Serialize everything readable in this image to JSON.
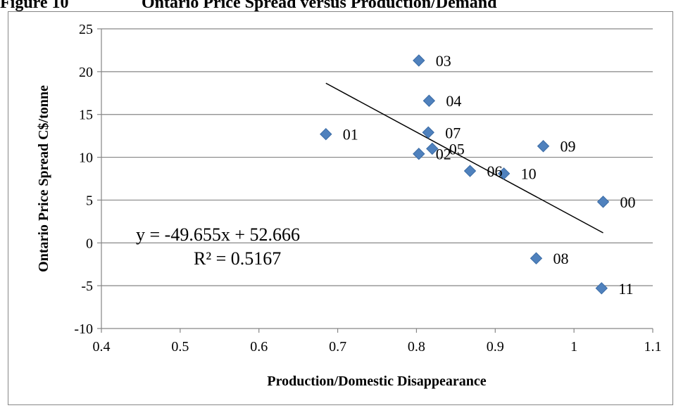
{
  "figure": {
    "label": "Figure 10",
    "caption": "Ontario Price Spread versus Production/Demand"
  },
  "chart_data": {
    "type": "scatter",
    "xlabel": "Production/Domestic Disappearance",
    "ylabel": "Ontario Price Spread C$/tonne",
    "xlim": [
      0.4,
      1.1
    ],
    "ylim": [
      -10,
      25
    ],
    "xticks": [
      "0.4",
      "0.5",
      "0.6",
      "0.7",
      "0.8",
      "0.9",
      "1",
      "1.1"
    ],
    "yticks": [
      "25",
      "20",
      "15",
      "10",
      "5",
      "0",
      "-5",
      "-10"
    ],
    "xtick_values": [
      0.4,
      0.5,
      0.6,
      0.7,
      0.8,
      0.9,
      1.0,
      1.1
    ],
    "ytick_values": [
      25,
      20,
      15,
      10,
      5,
      0,
      -5,
      -10
    ],
    "grid": "horizontal",
    "marker_color": "#4F81BD",
    "marker_stroke": "#3A6BA5",
    "points": [
      {
        "label": "00",
        "x": 1.037,
        "y": 4.8
      },
      {
        "label": "01",
        "x": 0.685,
        "y": 12.7
      },
      {
        "label": "02",
        "x": 0.803,
        "y": 10.4
      },
      {
        "label": "03",
        "x": 0.803,
        "y": 21.3
      },
      {
        "label": "04",
        "x": 0.816,
        "y": 16.6
      },
      {
        "label": "05",
        "x": 0.82,
        "y": 11.0
      },
      {
        "label": "06",
        "x": 0.868,
        "y": 8.4
      },
      {
        "label": "07",
        "x": 0.815,
        "y": 12.9
      },
      {
        "label": "08",
        "x": 0.952,
        "y": -1.8
      },
      {
        "label": "09",
        "x": 0.961,
        "y": 11.3
      },
      {
        "label": "10",
        "x": 0.911,
        "y": 8.1
      },
      {
        "label": "11",
        "x": 1.035,
        "y": -5.3
      }
    ],
    "trendline": {
      "slope": -49.655,
      "intercept": 52.666,
      "x_range": [
        0.685,
        1.037
      ],
      "equation": "y = -49.655x + 52.666",
      "r_squared": "R² = 0.5167"
    }
  }
}
